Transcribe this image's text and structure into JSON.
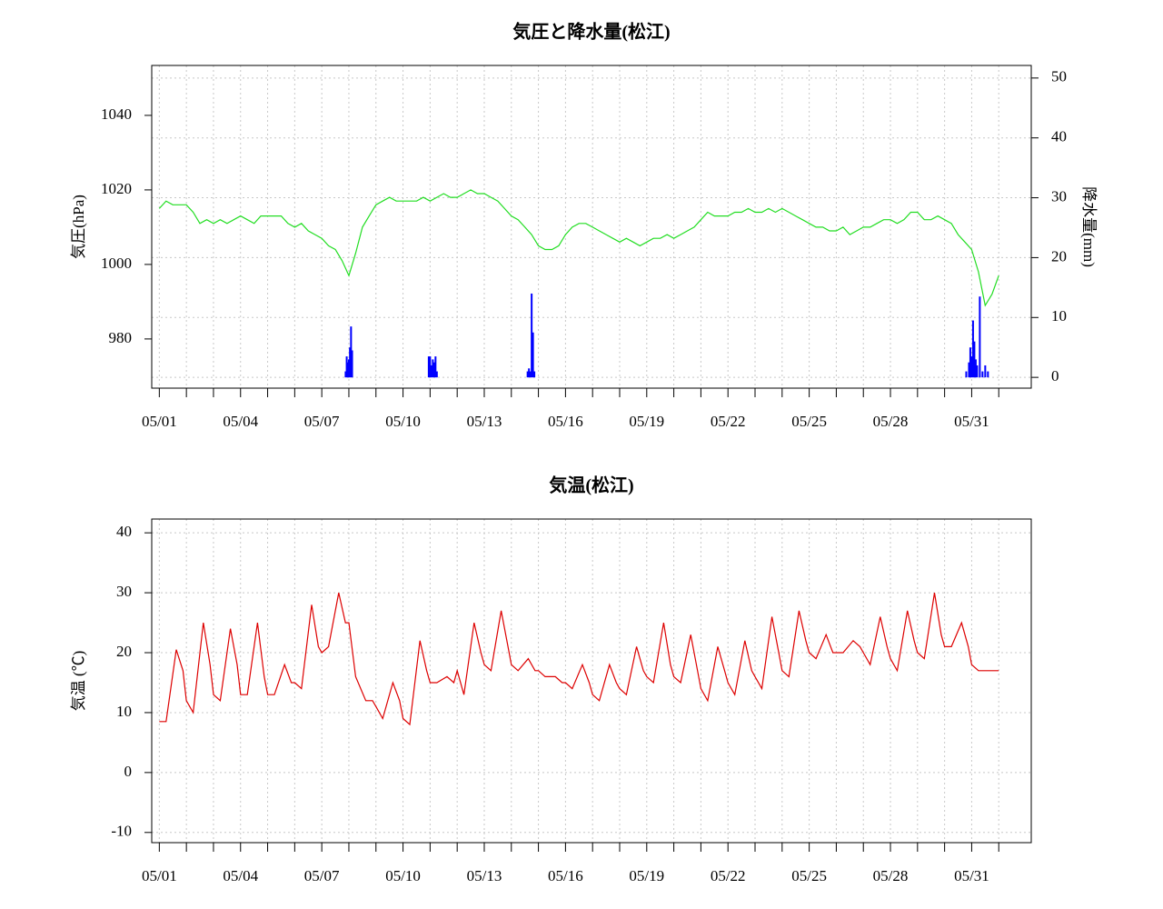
{
  "chart_data": [
    {
      "type": "line",
      "title": "気圧と降水量(松江)",
      "ylabel": "気圧(hPa)",
      "y2label": "降水量(mm)",
      "xlim": [
        0.72,
        33.2
      ],
      "ylim": [
        966.8,
        1053.4
      ],
      "y2lim": [
        -1.8,
        52.1
      ],
      "xticks": [
        {
          "value": 1,
          "label": "05/01"
        },
        {
          "value": 4,
          "label": "05/04"
        },
        {
          "value": 7,
          "label": "05/07"
        },
        {
          "value": 10,
          "label": "05/10"
        },
        {
          "value": 13,
          "label": "05/13"
        },
        {
          "value": 16,
          "label": "05/16"
        },
        {
          "value": 19,
          "label": "05/19"
        },
        {
          "value": 22,
          "label": "05/22"
        },
        {
          "value": 25,
          "label": "05/25"
        },
        {
          "value": 28,
          "label": "05/28"
        },
        {
          "value": 31,
          "label": "05/31"
        }
      ],
      "minor_xticks": [
        2,
        3,
        5,
        6,
        8,
        9,
        11,
        12,
        14,
        15,
        17,
        18,
        20,
        21,
        23,
        24,
        26,
        27,
        29,
        30,
        32
      ],
      "yticks": [
        980,
        1000,
        1020,
        1040
      ],
      "y2ticks": [
        0,
        10,
        20,
        30,
        40,
        50
      ],
      "grid": "y2",
      "series": [
        {
          "type": "line",
          "color": "#22dd22",
          "x": [
            1,
            1.25,
            1.5,
            1.75,
            2,
            2.25,
            2.5,
            2.75,
            3,
            3.25,
            3.5,
            3.75,
            4,
            4.25,
            4.5,
            4.75,
            5,
            5.25,
            5.5,
            5.75,
            6,
            6.25,
            6.5,
            6.75,
            7,
            7.25,
            7.5,
            7.75,
            8,
            8.25,
            8.5,
            8.75,
            9,
            9.25,
            9.5,
            9.75,
            10,
            10.25,
            10.5,
            10.75,
            11,
            11.25,
            11.5,
            11.75,
            12,
            12.25,
            12.5,
            12.75,
            13,
            13.25,
            13.5,
            13.75,
            14,
            14.25,
            14.5,
            14.75,
            15,
            15.25,
            15.5,
            15.75,
            16,
            16.25,
            16.5,
            16.75,
            17,
            17.25,
            17.5,
            17.75,
            18,
            18.25,
            18.5,
            18.75,
            19,
            19.25,
            19.5,
            19.75,
            20,
            20.25,
            20.5,
            20.75,
            21,
            21.25,
            21.5,
            21.75,
            22,
            22.25,
            22.5,
            22.75,
            23,
            23.25,
            23.5,
            23.75,
            24,
            24.25,
            24.5,
            24.75,
            25,
            25.25,
            25.5,
            25.75,
            26,
            26.25,
            26.5,
            26.75,
            27,
            27.25,
            27.5,
            27.75,
            28,
            28.25,
            28.5,
            28.75,
            29,
            29.25,
            29.5,
            29.75,
            30,
            30.25,
            30.5,
            30.75,
            31,
            31.25,
            31.5,
            31.75,
            32
          ],
          "values": [
            1015,
            1017,
            1016,
            1016,
            1016,
            1014,
            1011,
            1012,
            1011,
            1012,
            1011,
            1012,
            1013,
            1012,
            1011,
            1013,
            1013,
            1013,
            1013,
            1011,
            1010,
            1011,
            1009,
            1008,
            1007,
            1005,
            1004,
            1001,
            997,
            1003,
            1010,
            1013,
            1016,
            1017,
            1018,
            1017,
            1017,
            1017,
            1017,
            1018,
            1017,
            1018,
            1019,
            1018,
            1018,
            1019,
            1020,
            1019,
            1019,
            1018,
            1017,
            1015,
            1013,
            1012,
            1010,
            1008,
            1005,
            1004,
            1004,
            1005,
            1008,
            1010,
            1011,
            1011,
            1010,
            1009,
            1008,
            1007,
            1006,
            1007,
            1006,
            1005,
            1006,
            1007,
            1007,
            1008,
            1007,
            1008,
            1009,
            1010,
            1012,
            1014,
            1013,
            1013,
            1013,
            1014,
            1014,
            1015,
            1014,
            1014,
            1015,
            1014,
            1015,
            1014,
            1013,
            1012,
            1011,
            1010,
            1010,
            1009,
            1009,
            1010,
            1008,
            1009,
            1010,
            1010,
            1011,
            1012,
            1012,
            1011,
            1012,
            1014,
            1014,
            1012,
            1012,
            1013,
            1012,
            1011,
            1008,
            1006,
            1004,
            998,
            989,
            992,
            997
          ]
        },
        {
          "type": "bar",
          "axis": "y2",
          "color": "#0000ff",
          "x": [
            7.88,
            7.92,
            7.96,
            8.0,
            8.04,
            8.08,
            8.12,
            10.95,
            11.0,
            11.05,
            11.1,
            11.15,
            11.2,
            11.25,
            14.6,
            14.65,
            14.7,
            14.75,
            14.8,
            14.85,
            30.8,
            30.9,
            30.95,
            31.0,
            31.05,
            31.1,
            31.15,
            31.2,
            31.3,
            31.4,
            31.5,
            31.6
          ],
          "values": [
            1,
            3.5,
            2.5,
            3,
            5,
            8.5,
            4.5,
            3.5,
            3.5,
            2,
            3,
            2.5,
            3.5,
            1,
            1,
            1.5,
            1,
            14,
            7.5,
            1,
            1,
            2.5,
            5,
            3.5,
            9.5,
            6,
            3,
            2,
            13.5,
            1,
            2,
            1
          ]
        }
      ]
    },
    {
      "type": "line",
      "title": "気温(松江)",
      "ylabel": "気温 (℃)",
      "xlim": [
        0.72,
        33.2
      ],
      "ylim": [
        -11.7,
        42.3
      ],
      "xticks": [
        {
          "value": 1,
          "label": "05/01"
        },
        {
          "value": 4,
          "label": "05/04"
        },
        {
          "value": 7,
          "label": "05/07"
        },
        {
          "value": 10,
          "label": "05/10"
        },
        {
          "value": 13,
          "label": "05/13"
        },
        {
          "value": 16,
          "label": "05/16"
        },
        {
          "value": 19,
          "label": "05/19"
        },
        {
          "value": 22,
          "label": "05/22"
        },
        {
          "value": 25,
          "label": "05/25"
        },
        {
          "value": 28,
          "label": "05/28"
        },
        {
          "value": 31,
          "label": "05/31"
        }
      ],
      "minor_xticks": [
        2,
        3,
        5,
        6,
        8,
        9,
        11,
        12,
        14,
        15,
        17,
        18,
        20,
        21,
        23,
        24,
        26,
        27,
        29,
        30,
        32
      ],
      "yticks": [
        -10,
        0,
        10,
        20,
        30,
        40
      ],
      "grid": "y",
      "series": [
        {
          "type": "line",
          "color": "#dd0000",
          "x": [
            1,
            1.25,
            1.625,
            1.875,
            2,
            2.25,
            2.625,
            2.875,
            3,
            3.25,
            3.625,
            3.875,
            4,
            4.25,
            4.625,
            4.875,
            5,
            5.25,
            5.625,
            5.875,
            6,
            6.25,
            6.625,
            6.875,
            7,
            7.25,
            7.625,
            7.875,
            8,
            8.25,
            8.625,
            8.875,
            9,
            9.25,
            9.625,
            9.875,
            10,
            10.25,
            10.625,
            10.875,
            11,
            11.25,
            11.625,
            11.875,
            12,
            12.25,
            12.625,
            12.875,
            13,
            13.25,
            13.625,
            13.875,
            14,
            14.25,
            14.625,
            14.875,
            15,
            15.25,
            15.625,
            15.875,
            16,
            16.25,
            16.625,
            16.875,
            17,
            17.25,
            17.625,
            17.875,
            18,
            18.25,
            18.625,
            18.875,
            19,
            19.25,
            19.625,
            19.875,
            20,
            20.25,
            20.625,
            20.875,
            21,
            21.25,
            21.625,
            21.875,
            22,
            22.25,
            22.625,
            22.875,
            23,
            23.25,
            23.625,
            23.875,
            24,
            24.25,
            24.625,
            24.875,
            25,
            25.25,
            25.625,
            25.875,
            26,
            26.25,
            26.625,
            26.875,
            27,
            27.25,
            27.625,
            27.875,
            28,
            28.25,
            28.625,
            28.875,
            29,
            29.25,
            29.625,
            29.875,
            30,
            30.25,
            30.625,
            30.875,
            31,
            31.25,
            31.625,
            31.875,
            32
          ],
          "values": [
            8.5,
            8.5,
            20.5,
            17,
            12,
            10,
            25,
            18,
            13,
            12,
            24,
            18,
            13,
            13,
            25,
            16,
            13,
            13,
            18,
            15,
            15,
            14,
            28,
            21,
            20,
            21,
            30,
            25,
            25,
            16,
            12,
            12,
            11,
            9,
            15,
            12,
            9,
            8,
            22,
            17,
            15,
            15,
            16,
            15,
            17,
            13,
            25,
            20,
            18,
            17,
            27,
            21,
            18,
            17,
            19,
            17,
            17,
            16,
            16,
            15,
            15,
            14,
            18,
            15,
            13,
            12,
            18,
            15,
            14,
            13,
            21,
            17,
            16,
            15,
            25,
            18,
            16,
            15,
            23,
            17,
            14,
            12,
            21,
            17,
            15,
            13,
            22,
            17,
            16,
            14,
            26,
            20,
            17,
            16,
            27,
            22,
            20,
            19,
            23,
            20,
            20,
            20,
            22,
            21,
            20,
            18,
            26,
            21,
            19,
            17,
            27,
            22,
            20,
            19,
            30,
            23,
            21,
            21,
            25,
            21,
            18,
            17,
            17,
            17,
            17
          ]
        }
      ]
    }
  ]
}
